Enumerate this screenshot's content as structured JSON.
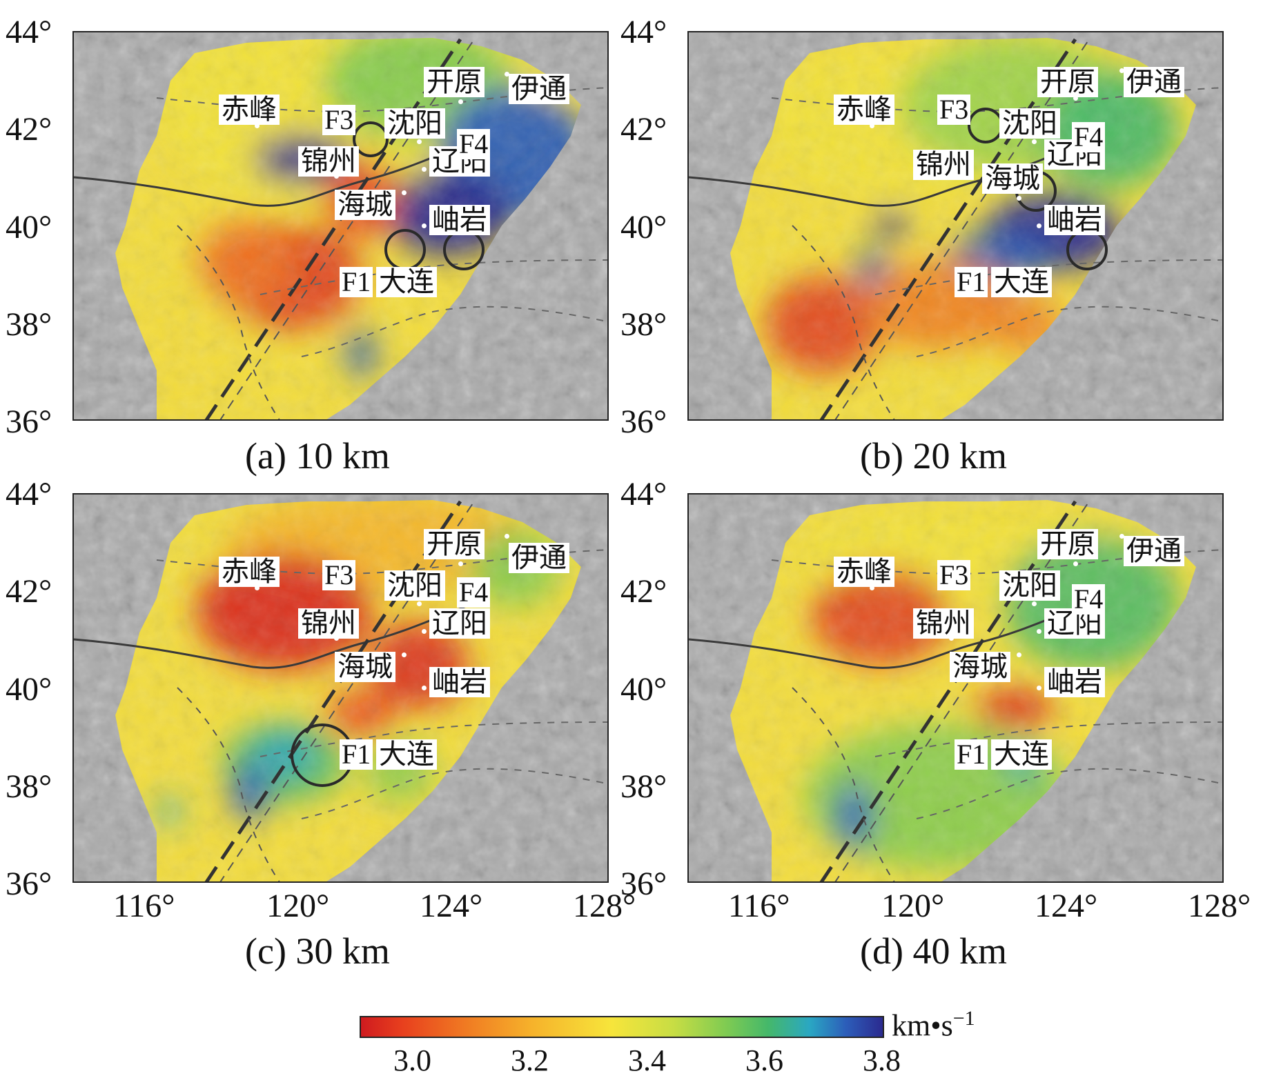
{
  "figure": {
    "panels": [
      {
        "id": "a",
        "caption": "(a) 10 km",
        "cities": {
          "chifeng": "赤峰",
          "jinzhou": "锦州",
          "haicheng": "海城",
          "shenyang": "沈阳",
          "liaoyang": "辽阳",
          "kaiyuan": "开原",
          "yitong": "伊通",
          "xiuyan": "岫岩",
          "dalian": "大连"
        },
        "faults": {
          "f1": "F1",
          "f3": "F3",
          "f4": "F4"
        },
        "blobs": [
          {
            "lon": 121.5,
            "lat": 42.7,
            "rx": 5.5,
            "ry": 2.5,
            "color": "#f2e23a",
            "opacity": 0.9
          },
          {
            "lon": 123.0,
            "lat": 43.0,
            "rx": 2.5,
            "ry": 1.2,
            "color": "#7fcb52",
            "opacity": 0.9
          },
          {
            "lon": 125.5,
            "lat": 41.5,
            "rx": 2.0,
            "ry": 1.4,
            "color": "#2c5db9",
            "opacity": 0.95
          },
          {
            "lon": 123.8,
            "lat": 40.3,
            "rx": 1.6,
            "ry": 0.9,
            "color": "#2b2a8f",
            "opacity": 0.95
          },
          {
            "lon": 120.0,
            "lat": 41.4,
            "rx": 1.3,
            "ry": 0.5,
            "color": "#2b2a8f",
            "opacity": 0.9
          },
          {
            "lon": 121.5,
            "lat": 40.6,
            "rx": 1.0,
            "ry": 0.8,
            "color": "#e8401e",
            "opacity": 0.9
          },
          {
            "lon": 119.5,
            "lat": 39.0,
            "rx": 2.0,
            "ry": 1.1,
            "color": "#e03a1f",
            "opacity": 0.9
          },
          {
            "lon": 118.5,
            "lat": 39.3,
            "rx": 1.3,
            "ry": 0.9,
            "color": "#f07a22",
            "opacity": 0.8
          },
          {
            "lon": 121.5,
            "lat": 37.4,
            "rx": 0.4,
            "ry": 0.5,
            "color": "#2c5db9",
            "opacity": 0.9
          },
          {
            "lon": 117.0,
            "lat": 37.5,
            "rx": 1.8,
            "ry": 1.2,
            "color": "#f4dc3a",
            "opacity": 0.7
          }
        ]
      },
      {
        "id": "b",
        "caption": "(b) 20 km",
        "cities": {
          "chifeng": "赤峰",
          "jinzhou": "锦州",
          "haicheng": "海城",
          "shenyang": "沈阳",
          "liaoyang": "辽阳",
          "kaiyuan": "开原",
          "yitong": "伊通",
          "xiuyan": "岫岩",
          "dalian": "大连"
        },
        "faults": {
          "f1": "F1",
          "f3": "F3",
          "f4": "F4"
        },
        "blobs": [
          {
            "lon": 119.5,
            "lat": 42.2,
            "rx": 3.5,
            "ry": 1.6,
            "color": "#f2e23a",
            "opacity": 0.9
          },
          {
            "lon": 122.5,
            "lat": 42.5,
            "rx": 3.0,
            "ry": 1.4,
            "color": "#9ad34e",
            "opacity": 0.9
          },
          {
            "lon": 125.0,
            "lat": 42.0,
            "rx": 1.8,
            "ry": 1.2,
            "color": "#45b86a",
            "opacity": 0.9
          },
          {
            "lon": 123.5,
            "lat": 39.9,
            "rx": 1.8,
            "ry": 0.8,
            "color": "#2b2a8f",
            "opacity": 0.95
          },
          {
            "lon": 122.2,
            "lat": 39.4,
            "rx": 1.4,
            "ry": 0.5,
            "color": "#2c5db9",
            "opacity": 0.85
          },
          {
            "lon": 119.3,
            "lat": 40.1,
            "rx": 0.4,
            "ry": 0.3,
            "color": "#2b2a8f",
            "opacity": 0.95
          },
          {
            "lon": 118.8,
            "lat": 39.1,
            "rx": 0.4,
            "ry": 0.5,
            "color": "#2c5db9",
            "opacity": 0.9
          },
          {
            "lon": 117.5,
            "lat": 38.0,
            "rx": 1.5,
            "ry": 1.0,
            "color": "#e03a1f",
            "opacity": 0.85
          },
          {
            "lon": 120.5,
            "lat": 38.4,
            "rx": 2.0,
            "ry": 0.9,
            "color": "#f07a22",
            "opacity": 0.85
          },
          {
            "lon": 122.8,
            "lat": 38.0,
            "rx": 1.0,
            "ry": 0.6,
            "color": "#f07a22",
            "opacity": 0.8
          }
        ]
      },
      {
        "id": "c",
        "caption": "(c) 30 km",
        "cities": {
          "chifeng": "赤峰",
          "jinzhou": "锦州",
          "haicheng": "海城",
          "shenyang": "沈阳",
          "liaoyang": "辽阳",
          "kaiyuan": "开原",
          "yitong": "伊通",
          "xiuyan": "岫岩",
          "dalian": "大连"
        },
        "faults": {
          "f1": "F1",
          "f3": "F3",
          "f4": "F4"
        },
        "blobs": [
          {
            "lon": 122.0,
            "lat": 43.0,
            "rx": 4.0,
            "ry": 1.0,
            "color": "#f6b32b",
            "opacity": 0.85
          },
          {
            "lon": 119.5,
            "lat": 41.6,
            "rx": 2.3,
            "ry": 1.2,
            "color": "#d9261f",
            "opacity": 0.9
          },
          {
            "lon": 123.0,
            "lat": 40.5,
            "rx": 1.3,
            "ry": 0.9,
            "color": "#d9261f",
            "opacity": 0.85
          },
          {
            "lon": 125.5,
            "lat": 42.5,
            "rx": 1.2,
            "ry": 0.8,
            "color": "#7fcb52",
            "opacity": 0.85
          },
          {
            "lon": 119.5,
            "lat": 38.5,
            "rx": 1.6,
            "ry": 0.8,
            "color": "#45b86a",
            "opacity": 0.85
          },
          {
            "lon": 118.6,
            "lat": 37.9,
            "rx": 0.5,
            "ry": 0.6,
            "color": "#2c5db9",
            "opacity": 0.95
          },
          {
            "lon": 119.5,
            "lat": 38.7,
            "rx": 0.8,
            "ry": 0.5,
            "color": "#2aa7c3",
            "opacity": 0.85
          },
          {
            "lon": 122.5,
            "lat": 38.3,
            "rx": 0.9,
            "ry": 0.6,
            "color": "#7fcb52",
            "opacity": 0.8
          },
          {
            "lon": 116.5,
            "lat": 37.5,
            "rx": 0.3,
            "ry": 0.3,
            "color": "#2aa7c3",
            "opacity": 0.9
          },
          {
            "lon": 121.5,
            "lat": 39.5,
            "rx": 0.9,
            "ry": 0.5,
            "color": "#e8401e",
            "opacity": 0.8
          }
        ]
      },
      {
        "id": "d",
        "caption": "(d) 40 km",
        "cities": {
          "chifeng": "赤峰",
          "jinzhou": "锦州",
          "haicheng": "海城",
          "shenyang": "沈阳",
          "liaoyang": "辽阳",
          "kaiyuan": "开原",
          "yitong": "伊通",
          "xiuyan": "岫岩",
          "dalian": "大连"
        },
        "faults": {
          "f1": "F1",
          "f3": "F3",
          "f4": "F4"
        },
        "blobs": [
          {
            "lon": 121.5,
            "lat": 42.8,
            "rx": 4.5,
            "ry": 1.0,
            "color": "#f2e23a",
            "opacity": 0.85
          },
          {
            "lon": 124.5,
            "lat": 41.8,
            "rx": 2.3,
            "ry": 1.4,
            "color": "#45b86a",
            "opacity": 0.85
          },
          {
            "lon": 119.0,
            "lat": 41.5,
            "rx": 1.8,
            "ry": 1.0,
            "color": "#e03a1f",
            "opacity": 0.85
          },
          {
            "lon": 122.5,
            "lat": 39.6,
            "rx": 1.0,
            "ry": 0.4,
            "color": "#d9261f",
            "opacity": 0.9
          },
          {
            "lon": 120.5,
            "lat": 37.8,
            "rx": 3.5,
            "ry": 1.5,
            "color": "#7fcb52",
            "opacity": 0.85
          },
          {
            "lon": 118.3,
            "lat": 37.4,
            "rx": 0.5,
            "ry": 0.7,
            "color": "#2c5db9",
            "opacity": 0.95
          },
          {
            "lon": 122.7,
            "lat": 38.5,
            "rx": 0.4,
            "ry": 0.4,
            "color": "#2aa7c3",
            "opacity": 0.8
          }
        ]
      }
    ],
    "axes": {
      "lat_ticks": [
        "44°",
        "42°",
        "40°",
        "38°",
        "36°"
      ],
      "lon_ticks": [
        "116°",
        "120°",
        "124°",
        "128°"
      ],
      "lon_range": [
        114,
        128
      ],
      "lat_range": [
        36,
        44
      ]
    },
    "colorbar": {
      "ticks": [
        "3.0",
        "3.2",
        "3.4",
        "3.6",
        "3.8"
      ],
      "unit_main": "km•s",
      "unit_exp": "−1",
      "colormap": "red-yellow-green-blue",
      "range": [
        2.88,
        3.82
      ]
    }
  }
}
